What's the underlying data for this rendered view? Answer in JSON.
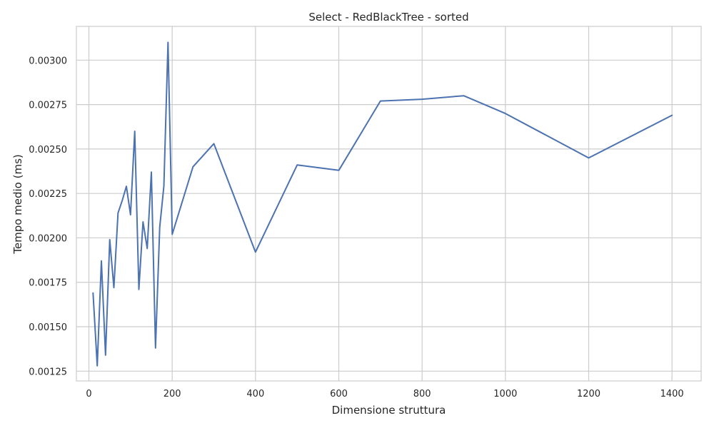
{
  "chart_data": {
    "type": "line",
    "title": "Select - RedBlackTree - sorted",
    "xlabel": "Dimensione struttura",
    "ylabel": "Tempo medio (ms)",
    "xlim": [
      -30,
      1470
    ],
    "ylim": [
      0.001195,
      0.00319
    ],
    "x_ticks": [
      0,
      200,
      400,
      600,
      800,
      1000,
      1200,
      1400
    ],
    "x_tick_labels": [
      "0",
      "200",
      "400",
      "600",
      "800",
      "1000",
      "1200",
      "1400"
    ],
    "y_ticks": [
      0.00125,
      0.0015,
      0.00175,
      0.002,
      0.00225,
      0.0025,
      0.00275,
      0.003
    ],
    "y_tick_labels": [
      "0.00125",
      "0.00150",
      "0.00175",
      "0.00200",
      "0.00225",
      "0.00250",
      "0.00275",
      "0.00300"
    ],
    "grid": true,
    "line_color": "#4c72b0",
    "series": [
      {
        "x": [
          10,
          20,
          30,
          40,
          50,
          60,
          70,
          80,
          90,
          100,
          110,
          120,
          130,
          140,
          150,
          160,
          170,
          180,
          190,
          200,
          250,
          300,
          400,
          500,
          600,
          700,
          800,
          900,
          1000,
          1200,
          1400
        ],
        "y": [
          0.00169,
          0.00128,
          0.00187,
          0.00134,
          0.00199,
          0.00172,
          0.00214,
          0.00221,
          0.00229,
          0.00213,
          0.0026,
          0.00171,
          0.00209,
          0.00194,
          0.00237,
          0.00138,
          0.00206,
          0.00229,
          0.0031,
          0.00202,
          0.0024,
          0.00253,
          0.00192,
          0.00241,
          0.00238,
          0.00277,
          0.00278,
          0.0028,
          0.0027,
          0.00245,
          0.00269
        ]
      }
    ]
  }
}
